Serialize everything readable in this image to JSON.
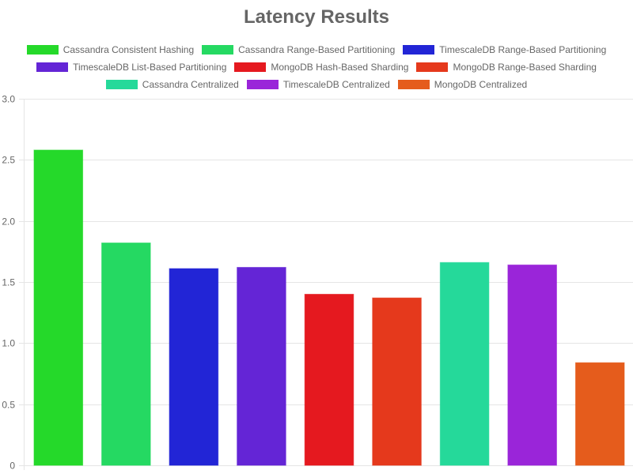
{
  "chart_data": {
    "type": "bar",
    "title": "Latency Results",
    "xlabel": "",
    "ylabel": "",
    "ylim": [
      0,
      3.0
    ],
    "yticks": [
      "0",
      "0.5",
      "1.0",
      "1.5",
      "2.0",
      "2.5",
      "3.0"
    ],
    "grid": true,
    "legend_position": "top",
    "series": [
      {
        "name": "Cassandra Consistent Hashing",
        "value": 2.58,
        "color": "#25d92a"
      },
      {
        "name": "Cassandra Range-Based Partitioning",
        "value": 1.82,
        "color": "#25d962"
      },
      {
        "name": "TimescaleDB Range-Based Partitioning",
        "value": 1.61,
        "color": "#2225d6"
      },
      {
        "name": "TimescaleDB List-Based Partitioning",
        "value": 1.62,
        "color": "#6425d6"
      },
      {
        "name": "MongoDB Hash-Based Sharding",
        "value": 1.4,
        "color": "#e5191f"
      },
      {
        "name": "MongoDB Range-Based Sharding",
        "value": 1.37,
        "color": "#e5391c"
      },
      {
        "name": "Cassandra Centralized",
        "value": 1.66,
        "color": "#25d99a"
      },
      {
        "name": "TimescaleDB Centralized",
        "value": 1.64,
        "color": "#9a25d9"
      },
      {
        "name": "MongoDB Centralized",
        "value": 0.84,
        "color": "#e55c1c"
      }
    ]
  }
}
